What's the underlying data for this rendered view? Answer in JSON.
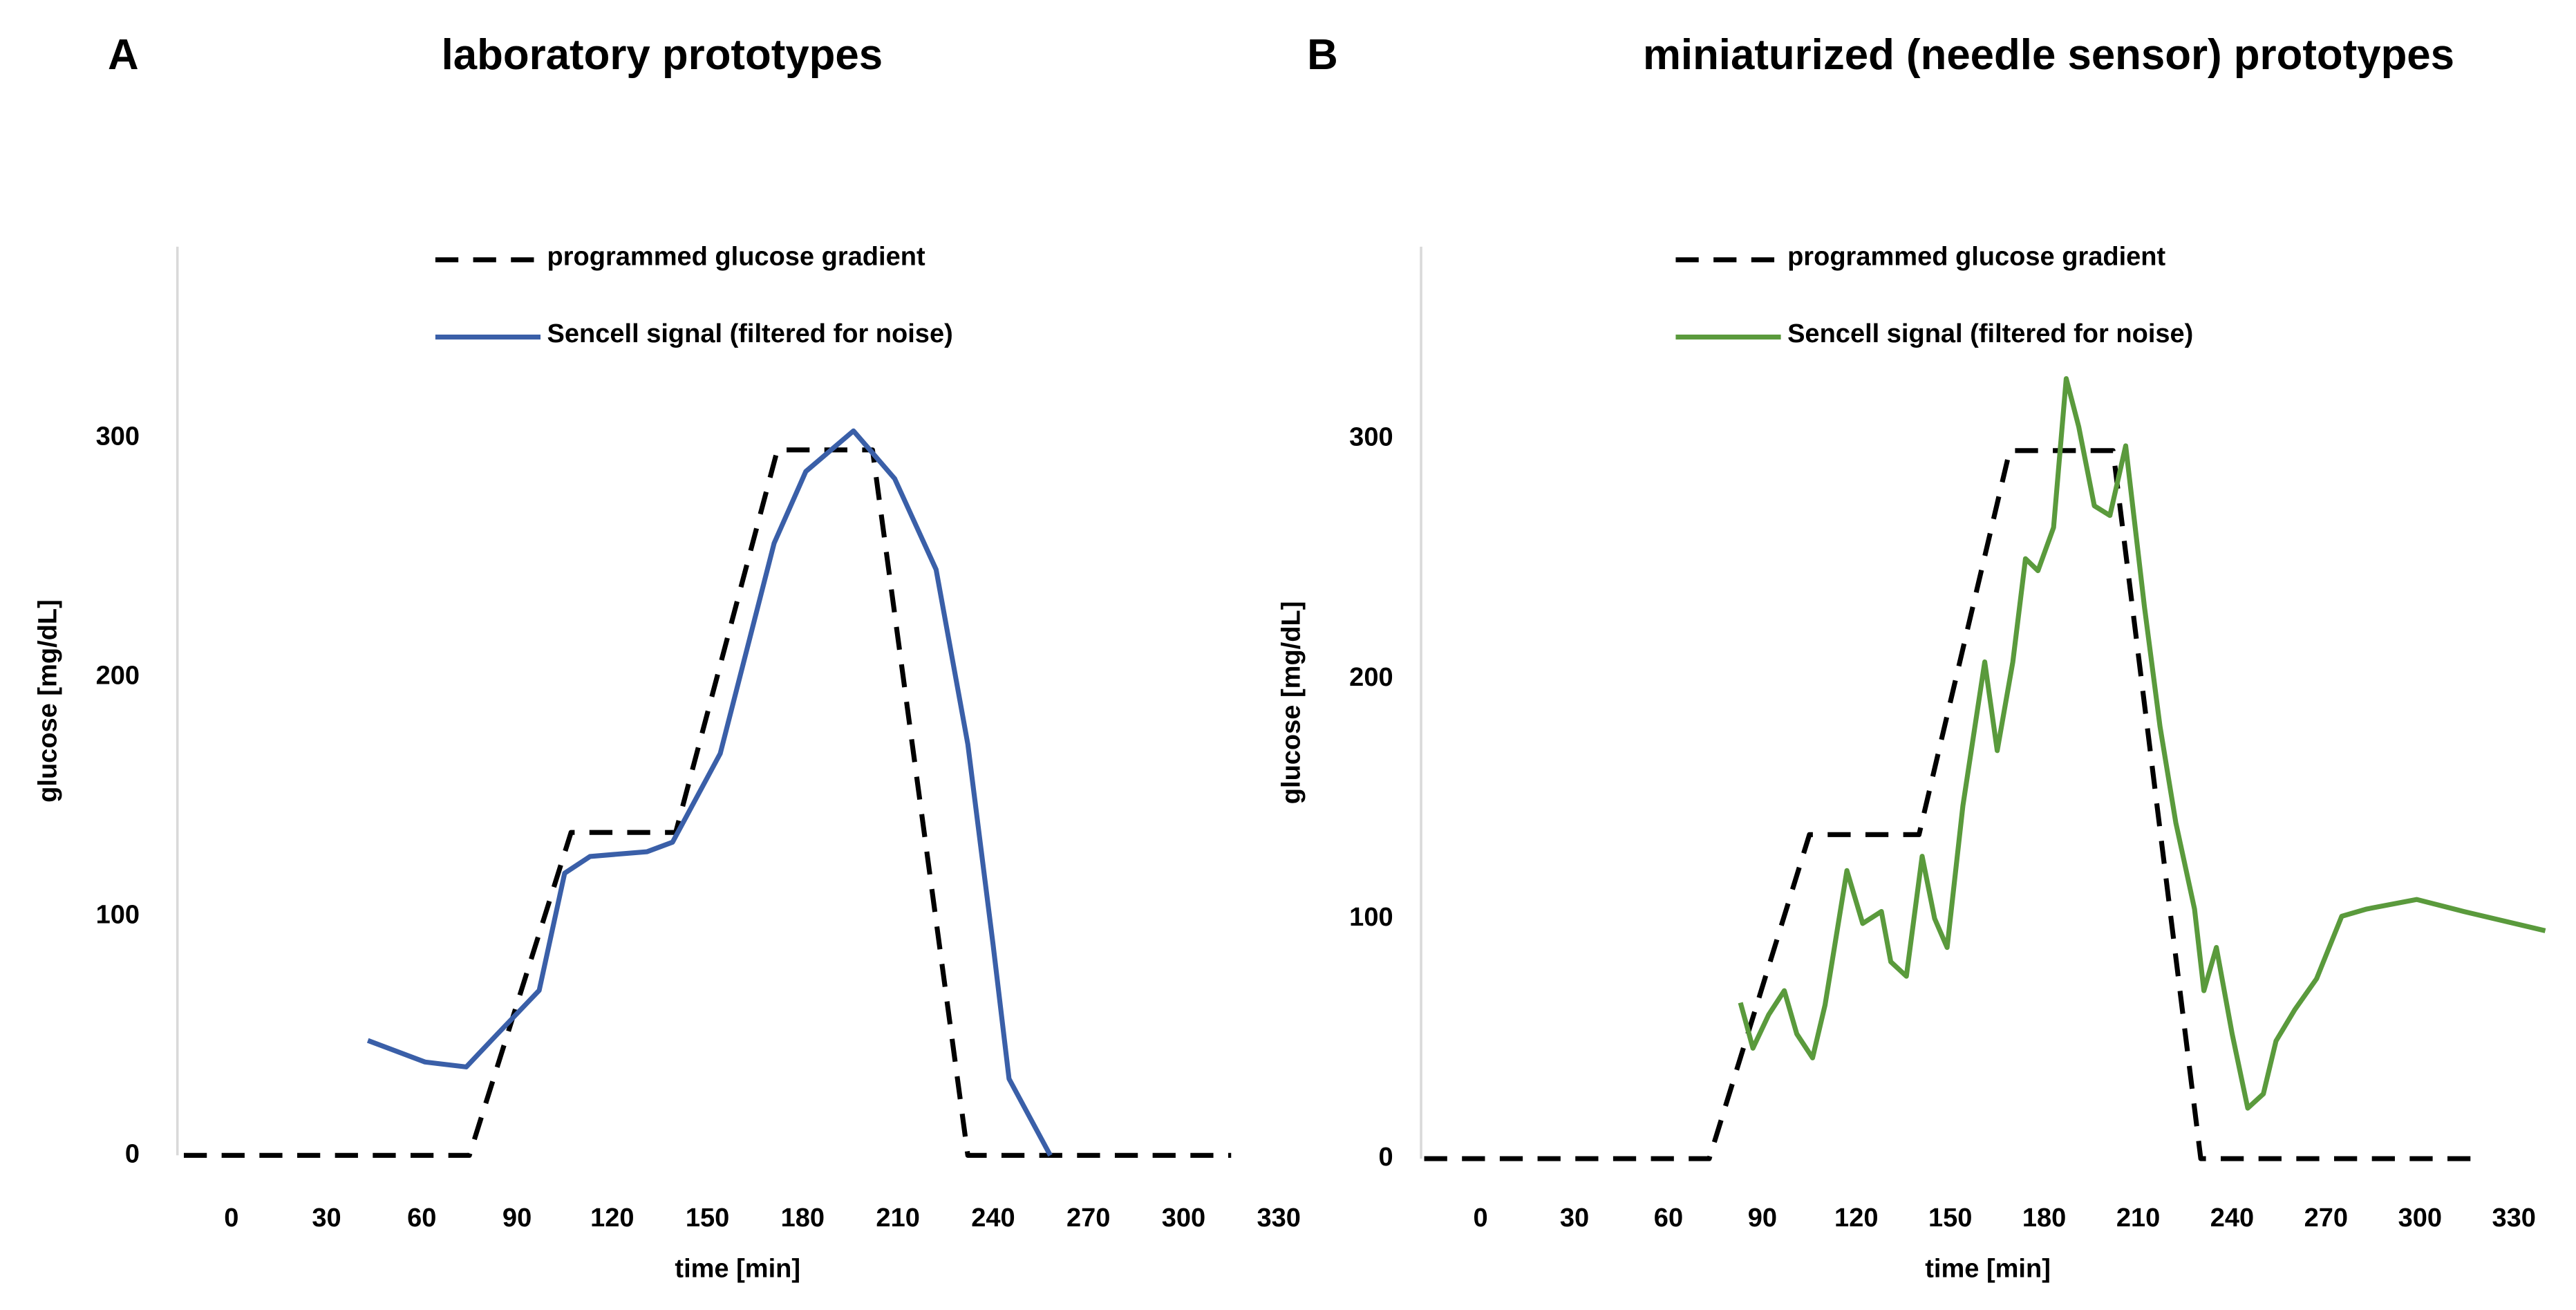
{
  "chart_data": [
    {
      "type": "line",
      "panel": "A",
      "title": "laboratory prototypes",
      "x_label": "time [min]",
      "y_label": "glucose [mg/dL]",
      "xlim": [
        -17,
        336
      ],
      "xticks": [
        0,
        30,
        60,
        90,
        120,
        150,
        180,
        210,
        240,
        270,
        300,
        330
      ],
      "ylim": [
        0,
        380
      ],
      "yticks": [
        0,
        100,
        200,
        300
      ],
      "grid": false,
      "legend": "top",
      "series": [
        {
          "name": "programmed glucose gradient",
          "color": "#000000",
          "line_style": "dashed",
          "x": [
            -15,
            75,
            107,
            140,
            172,
            202,
            232,
            315
          ],
          "values": [
            0,
            0,
            135,
            135,
            295,
            295,
            0,
            0
          ]
        },
        {
          "name": "Sencell signal (filtered for noise)",
          "color": "#3a5fa8",
          "line_style": "solid",
          "x": [
            43,
            61,
            74,
            84,
            97,
            105,
            113,
            131,
            139,
            154,
            171,
            181,
            196,
            209,
            222,
            232,
            240,
            245,
            258
          ],
          "values": [
            48,
            39,
            37,
            51,
            69,
            118,
            125,
            127,
            131,
            168,
            256,
            286,
            303,
            283,
            245,
            172,
            88,
            32,
            0
          ]
        }
      ]
    },
    {
      "type": "line",
      "panel": "B",
      "title": "miniaturized (needle sensor) prototypes",
      "x_label": "time [min]",
      "y_label": "glucose [mg/dL]",
      "xlim": [
        -19,
        343
      ],
      "xticks": [
        0,
        30,
        60,
        90,
        120,
        150,
        180,
        210,
        240,
        270,
        300,
        330
      ],
      "ylim": [
        0,
        380
      ],
      "yticks": [
        0,
        100,
        200,
        300
      ],
      "grid": false,
      "legend": "top",
      "series": [
        {
          "name": "programmed glucose gradient",
          "color": "#000000",
          "line_style": "dashed",
          "x": [
            -18,
            73,
            105,
            140,
            169,
            202,
            230,
            317
          ],
          "values": [
            0,
            0,
            135,
            135,
            295,
            295,
            0,
            0
          ]
        },
        {
          "name": "Sencell signal (filtered for noise)",
          "color": "#5a9a3c",
          "line_style": "solid",
          "x": [
            83,
            87,
            92,
            97,
            101,
            106,
            110,
            113,
            117,
            122,
            128,
            131,
            136,
            141,
            145,
            149,
            154,
            161,
            165,
            170,
            174,
            178,
            183,
            187,
            191,
            196,
            201,
            206,
            212,
            217,
            222,
            228,
            231,
            235,
            240,
            245,
            250,
            254,
            260,
            267,
            275,
            283,
            299,
            314,
            340
          ],
          "values": [
            65,
            46,
            60,
            70,
            52,
            42,
            64,
            88,
            120,
            98,
            103,
            82,
            76,
            126,
            100,
            88,
            147,
            207,
            170,
            207,
            250,
            245,
            263,
            325,
            305,
            272,
            268,
            297,
            230,
            180,
            140,
            104,
            70,
            88,
            52,
            21,
            27,
            49,
            62,
            75,
            101,
            104,
            108,
            103,
            95
          ]
        }
      ]
    }
  ]
}
